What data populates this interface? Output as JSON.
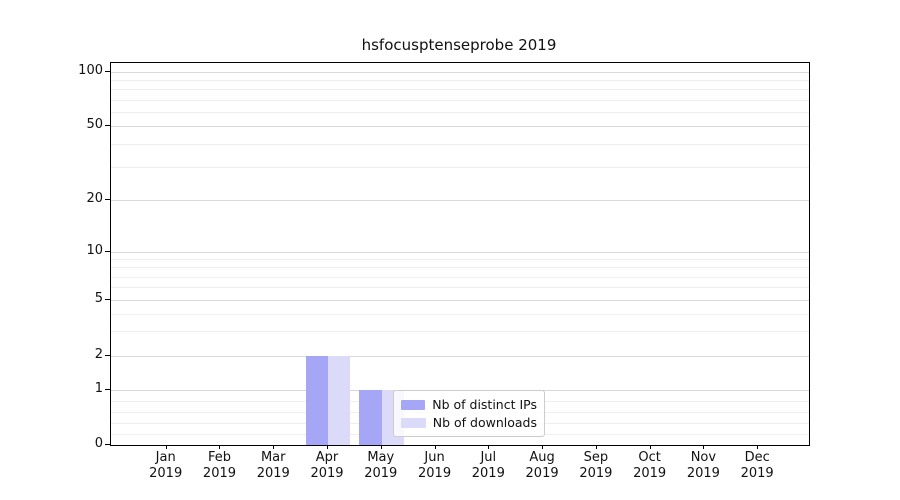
{
  "title": "hsfocusptenseprobe 2019",
  "axes": {
    "y_tick_labels": [
      "0",
      "1",
      "2",
      "5",
      "10",
      "20",
      "50",
      "100"
    ],
    "x_tick_months": [
      "Jan",
      "Feb",
      "Mar",
      "Apr",
      "May",
      "Jun",
      "Jul",
      "Aug",
      "Sep",
      "Oct",
      "Nov",
      "Dec"
    ],
    "x_tick_year": "2019"
  },
  "legend": {
    "items": [
      {
        "label": "Nb of distinct IPs",
        "color": "#a6a6f7"
      },
      {
        "label": "Nb of downloads",
        "color": "#dbdbf9"
      }
    ]
  },
  "chart_data": {
    "type": "bar",
    "title": "hsfocusptenseprobe 2019",
    "categories": [
      "Jan 2019",
      "Feb 2019",
      "Mar 2019",
      "Apr 2019",
      "May 2019",
      "Jun 2019",
      "Jul 2019",
      "Aug 2019",
      "Sep 2019",
      "Oct 2019",
      "Nov 2019",
      "Dec 2019"
    ],
    "series": [
      {
        "name": "Nb of distinct IPs",
        "color": "#a6a6f7",
        "values": [
          0,
          0,
          0,
          2,
          1,
          0,
          0,
          0,
          0,
          0,
          0,
          0
        ]
      },
      {
        "name": "Nb of downloads",
        "color": "#dbdbf9",
        "values": [
          0,
          0,
          0,
          2,
          1,
          0,
          0,
          0,
          0,
          0,
          0,
          0
        ]
      }
    ],
    "xlabel": "",
    "ylabel": "",
    "y_scale": "symlog",
    "yticks": [
      0,
      1,
      2,
      5,
      10,
      20,
      50,
      100
    ],
    "minor_yticks": [
      0.2,
      0.4,
      0.6,
      0.8,
      3,
      4,
      6,
      7,
      8,
      9,
      30,
      40,
      60,
      70,
      80,
      90
    ],
    "ylim": [
      0,
      112
    ],
    "grid": true,
    "legend_position": "inside lower-center"
  },
  "colors": {
    "grid_major": "#d9d9d9",
    "grid_minor": "#efefef",
    "spine": "#000000",
    "background": "#ffffff"
  }
}
